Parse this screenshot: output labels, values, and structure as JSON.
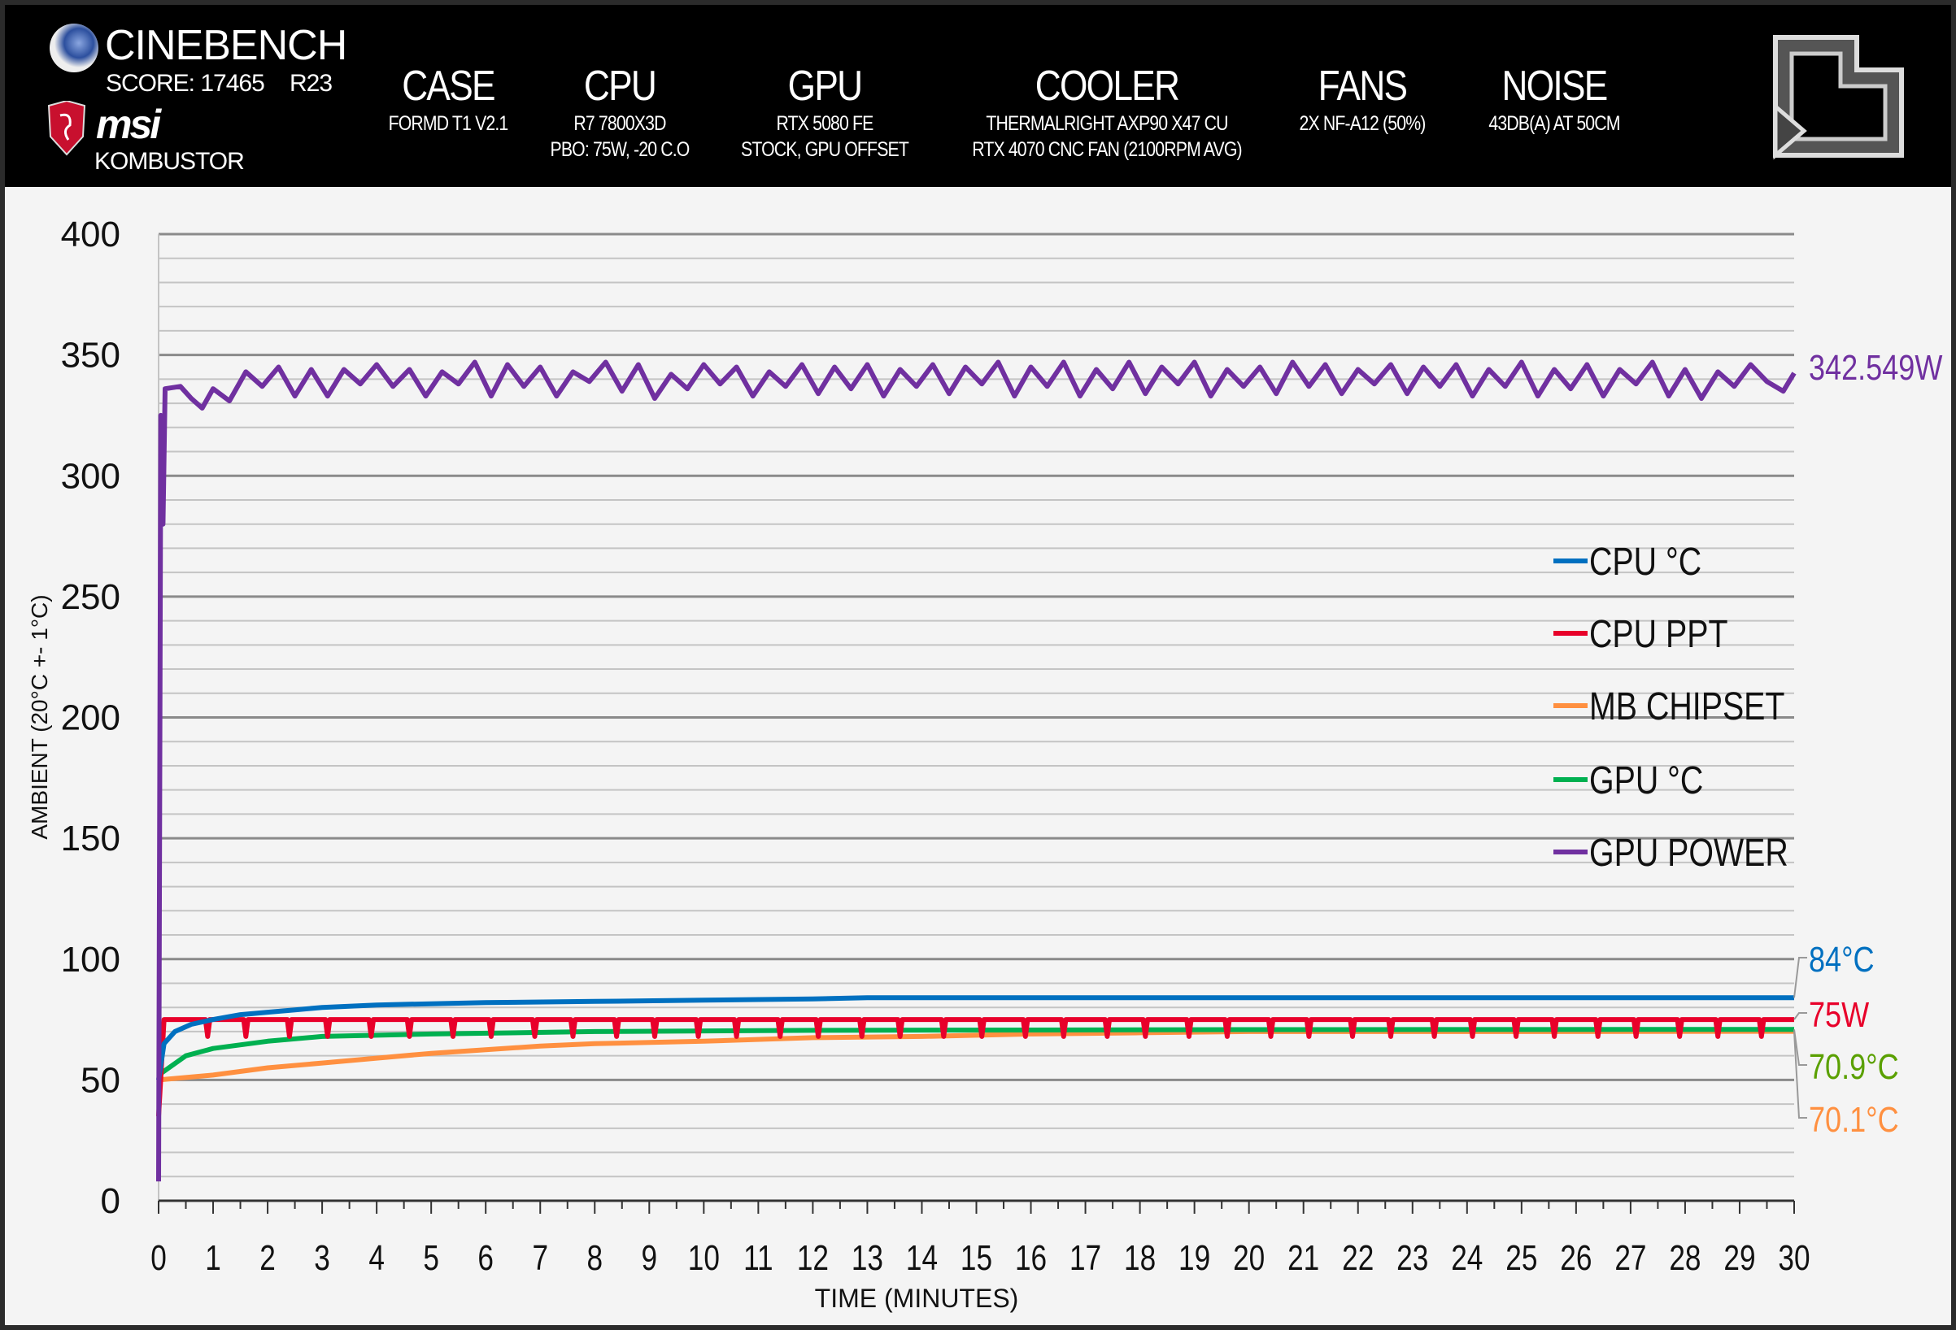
{
  "header": {
    "brand": "CINEBENCH",
    "score": "SCORE: 17465",
    "version": "R23",
    "msi_logo": "msi",
    "kombustor": "KOMBUSTOR",
    "columns": [
      {
        "title": "CASE",
        "lines": [
          "FORMD T1 V2.1"
        ]
      },
      {
        "title": "CPU",
        "lines": [
          "R7 7800X3D",
          "PBO: 75W, -20 C.O"
        ]
      },
      {
        "title": "GPU",
        "lines": [
          "RTX 5080 FE",
          "STOCK, GPU OFFSET"
        ]
      },
      {
        "title": "COOLER",
        "lines": [
          "THERMALRIGHT AXP90 X47 CU",
          "RTX 4070 CNC FAN (2100RPM AVG)"
        ]
      },
      {
        "title": "FANS",
        "lines": [
          "2X NF-A12 (50%)"
        ]
      },
      {
        "title": "NOISE",
        "lines": [
          "43DB(A) AT 50CM"
        ]
      }
    ],
    "icons": [
      "cinebench-logo-icon",
      "msi-dragon-shield-icon",
      "site-logo-icon"
    ]
  },
  "chart_data": {
    "type": "line",
    "xlabel": "TIME (MINUTES)",
    "ylabel": "AMBIENT (20°C +- 1°C)",
    "xlim": [
      0,
      30
    ],
    "ylim": [
      0,
      400
    ],
    "x_ticks": [
      "0",
      "1",
      "2",
      "3",
      "4",
      "5",
      "6",
      "7",
      "8",
      "9",
      "10",
      "11",
      "12",
      "13",
      "14",
      "15",
      "16",
      "17",
      "18",
      "19",
      "20",
      "21",
      "22",
      "23",
      "24",
      "25",
      "26",
      "27",
      "28",
      "29",
      "30"
    ],
    "y_ticks": [
      "0",
      "50",
      "100",
      "150",
      "200",
      "250",
      "300",
      "350",
      "400"
    ],
    "grid": true,
    "legend_position": "right",
    "series": [
      {
        "name": "CPU °C",
        "color": "#0070c0",
        "end_label": "84°C",
        "label_color": "#0070c0",
        "points": [
          [
            0,
            50
          ],
          [
            0.1,
            65
          ],
          [
            0.3,
            70
          ],
          [
            0.6,
            73
          ],
          [
            1,
            75
          ],
          [
            1.5,
            77
          ],
          [
            2,
            78
          ],
          [
            2.5,
            79
          ],
          [
            3,
            80
          ],
          [
            4,
            81
          ],
          [
            5,
            81.5
          ],
          [
            6,
            82
          ],
          [
            8,
            82.5
          ],
          [
            10,
            83
          ],
          [
            12,
            83.5
          ],
          [
            13,
            84
          ],
          [
            16,
            84
          ],
          [
            20,
            84
          ],
          [
            25,
            84
          ],
          [
            30,
            84
          ]
        ]
      },
      {
        "name": "CPU PPT",
        "color": "#e8002a",
        "end_label": "75W",
        "label_color": "#e8002a",
        "points": [
          [
            0,
            35
          ],
          [
            0.05,
            55
          ],
          [
            0.1,
            75
          ],
          [
            30,
            75
          ]
        ],
        "dip_minutes": [
          0.9,
          1.6,
          2.4,
          3.1,
          3.9,
          4.6,
          5.4,
          6.1,
          6.9,
          7.6,
          8.4,
          9.1,
          9.9,
          10.6,
          11.4,
          12.1,
          12.9,
          13.6,
          14.4,
          15.1,
          15.9,
          16.6,
          17.4,
          18.1,
          18.9,
          19.6,
          20.4,
          21.1,
          21.9,
          22.6,
          23.4,
          24.1,
          24.9,
          25.6,
          26.4,
          27.1,
          27.9,
          28.6,
          29.4
        ],
        "dip_value": 68
      },
      {
        "name": "MB CHIPSET",
        "color": "#ff9040",
        "end_label": "70.1°C",
        "label_color": "#ff9040",
        "points": [
          [
            0,
            50
          ],
          [
            1,
            52
          ],
          [
            2,
            55
          ],
          [
            3,
            57
          ],
          [
            4,
            59
          ],
          [
            5,
            61
          ],
          [
            6,
            62.5
          ],
          [
            7,
            64
          ],
          [
            8,
            65
          ],
          [
            10,
            66
          ],
          [
            12,
            67.5
          ],
          [
            14,
            68
          ],
          [
            16,
            69
          ],
          [
            18,
            69.5
          ],
          [
            20,
            70
          ],
          [
            25,
            70
          ],
          [
            30,
            70.1
          ]
        ]
      },
      {
        "name": "GPU °C",
        "color": "#00b050",
        "end_label": "70.9°C",
        "label_color": "#5aa000",
        "points": [
          [
            0,
            52
          ],
          [
            0.5,
            60
          ],
          [
            1,
            63
          ],
          [
            2,
            66
          ],
          [
            3,
            68
          ],
          [
            5,
            69
          ],
          [
            8,
            70
          ],
          [
            12,
            70.5
          ],
          [
            20,
            70.8
          ],
          [
            30,
            70.9
          ]
        ]
      },
      {
        "name": "GPU POWER",
        "color": "#7030a0",
        "end_label": "342.549W",
        "label_color": "#7030a0",
        "points": [
          [
            0,
            8
          ],
          [
            0.04,
            325
          ],
          [
            0.08,
            280
          ],
          [
            0.12,
            336
          ],
          [
            0.4,
            337
          ],
          [
            0.6,
            332
          ],
          [
            0.8,
            328
          ],
          [
            1,
            336
          ],
          [
            1.3,
            331
          ],
          [
            1.6,
            343
          ],
          [
            1.9,
            337
          ],
          [
            2.2,
            345
          ],
          [
            2.5,
            333
          ],
          [
            2.8,
            344
          ],
          [
            3.1,
            333
          ],
          [
            3.4,
            344
          ],
          [
            3.7,
            338
          ],
          [
            4,
            346
          ],
          [
            4.3,
            337
          ],
          [
            4.6,
            344
          ],
          [
            4.9,
            333
          ],
          [
            5.2,
            343
          ],
          [
            5.5,
            338
          ],
          [
            5.8,
            347
          ],
          [
            6.1,
            333
          ],
          [
            6.4,
            346
          ],
          [
            6.7,
            337
          ],
          [
            7,
            345
          ],
          [
            7.3,
            333
          ],
          [
            7.6,
            343
          ],
          [
            7.9,
            339
          ],
          [
            8.2,
            347
          ],
          [
            8.5,
            335
          ],
          [
            8.8,
            346
          ],
          [
            9.1,
            332
          ],
          [
            9.4,
            342
          ],
          [
            9.7,
            336
          ],
          [
            10,
            346
          ],
          [
            10.3,
            338
          ],
          [
            10.6,
            345
          ],
          [
            10.9,
            333
          ],
          [
            11.2,
            343
          ],
          [
            11.5,
            337
          ],
          [
            11.8,
            346
          ],
          [
            12.1,
            334
          ],
          [
            12.4,
            345
          ],
          [
            12.7,
            336
          ],
          [
            13,
            346
          ],
          [
            13.3,
            333
          ],
          [
            13.6,
            344
          ],
          [
            13.9,
            337
          ],
          [
            14.2,
            346
          ],
          [
            14.5,
            334
          ],
          [
            14.8,
            345
          ],
          [
            15.1,
            338
          ],
          [
            15.4,
            347
          ],
          [
            15.7,
            333
          ],
          [
            16,
            345
          ],
          [
            16.3,
            337
          ],
          [
            16.6,
            347
          ],
          [
            16.9,
            333
          ],
          [
            17.2,
            344
          ],
          [
            17.5,
            336
          ],
          [
            17.8,
            347
          ],
          [
            18.1,
            334
          ],
          [
            18.4,
            345
          ],
          [
            18.7,
            338
          ],
          [
            19,
            347
          ],
          [
            19.3,
            333
          ],
          [
            19.6,
            344
          ],
          [
            19.9,
            337
          ],
          [
            20.2,
            345
          ],
          [
            20.5,
            334
          ],
          [
            20.8,
            347
          ],
          [
            21.1,
            337
          ],
          [
            21.4,
            346
          ],
          [
            21.7,
            334
          ],
          [
            22,
            344
          ],
          [
            22.3,
            338
          ],
          [
            22.6,
            346
          ],
          [
            22.9,
            334
          ],
          [
            23.2,
            345
          ],
          [
            23.5,
            337
          ],
          [
            23.8,
            346
          ],
          [
            24.1,
            333
          ],
          [
            24.4,
            344
          ],
          [
            24.7,
            337
          ],
          [
            25,
            347
          ],
          [
            25.3,
            333
          ],
          [
            25.6,
            344
          ],
          [
            25.9,
            336
          ],
          [
            26.2,
            346
          ],
          [
            26.5,
            333
          ],
          [
            26.8,
            344
          ],
          [
            27.1,
            338
          ],
          [
            27.4,
            347
          ],
          [
            27.7,
            333
          ],
          [
            28,
            344
          ],
          [
            28.3,
            332
          ],
          [
            28.6,
            343
          ],
          [
            28.9,
            337
          ],
          [
            29.2,
            346
          ],
          [
            29.5,
            339
          ],
          [
            29.8,
            335
          ],
          [
            30,
            342.5
          ]
        ]
      }
    ]
  }
}
